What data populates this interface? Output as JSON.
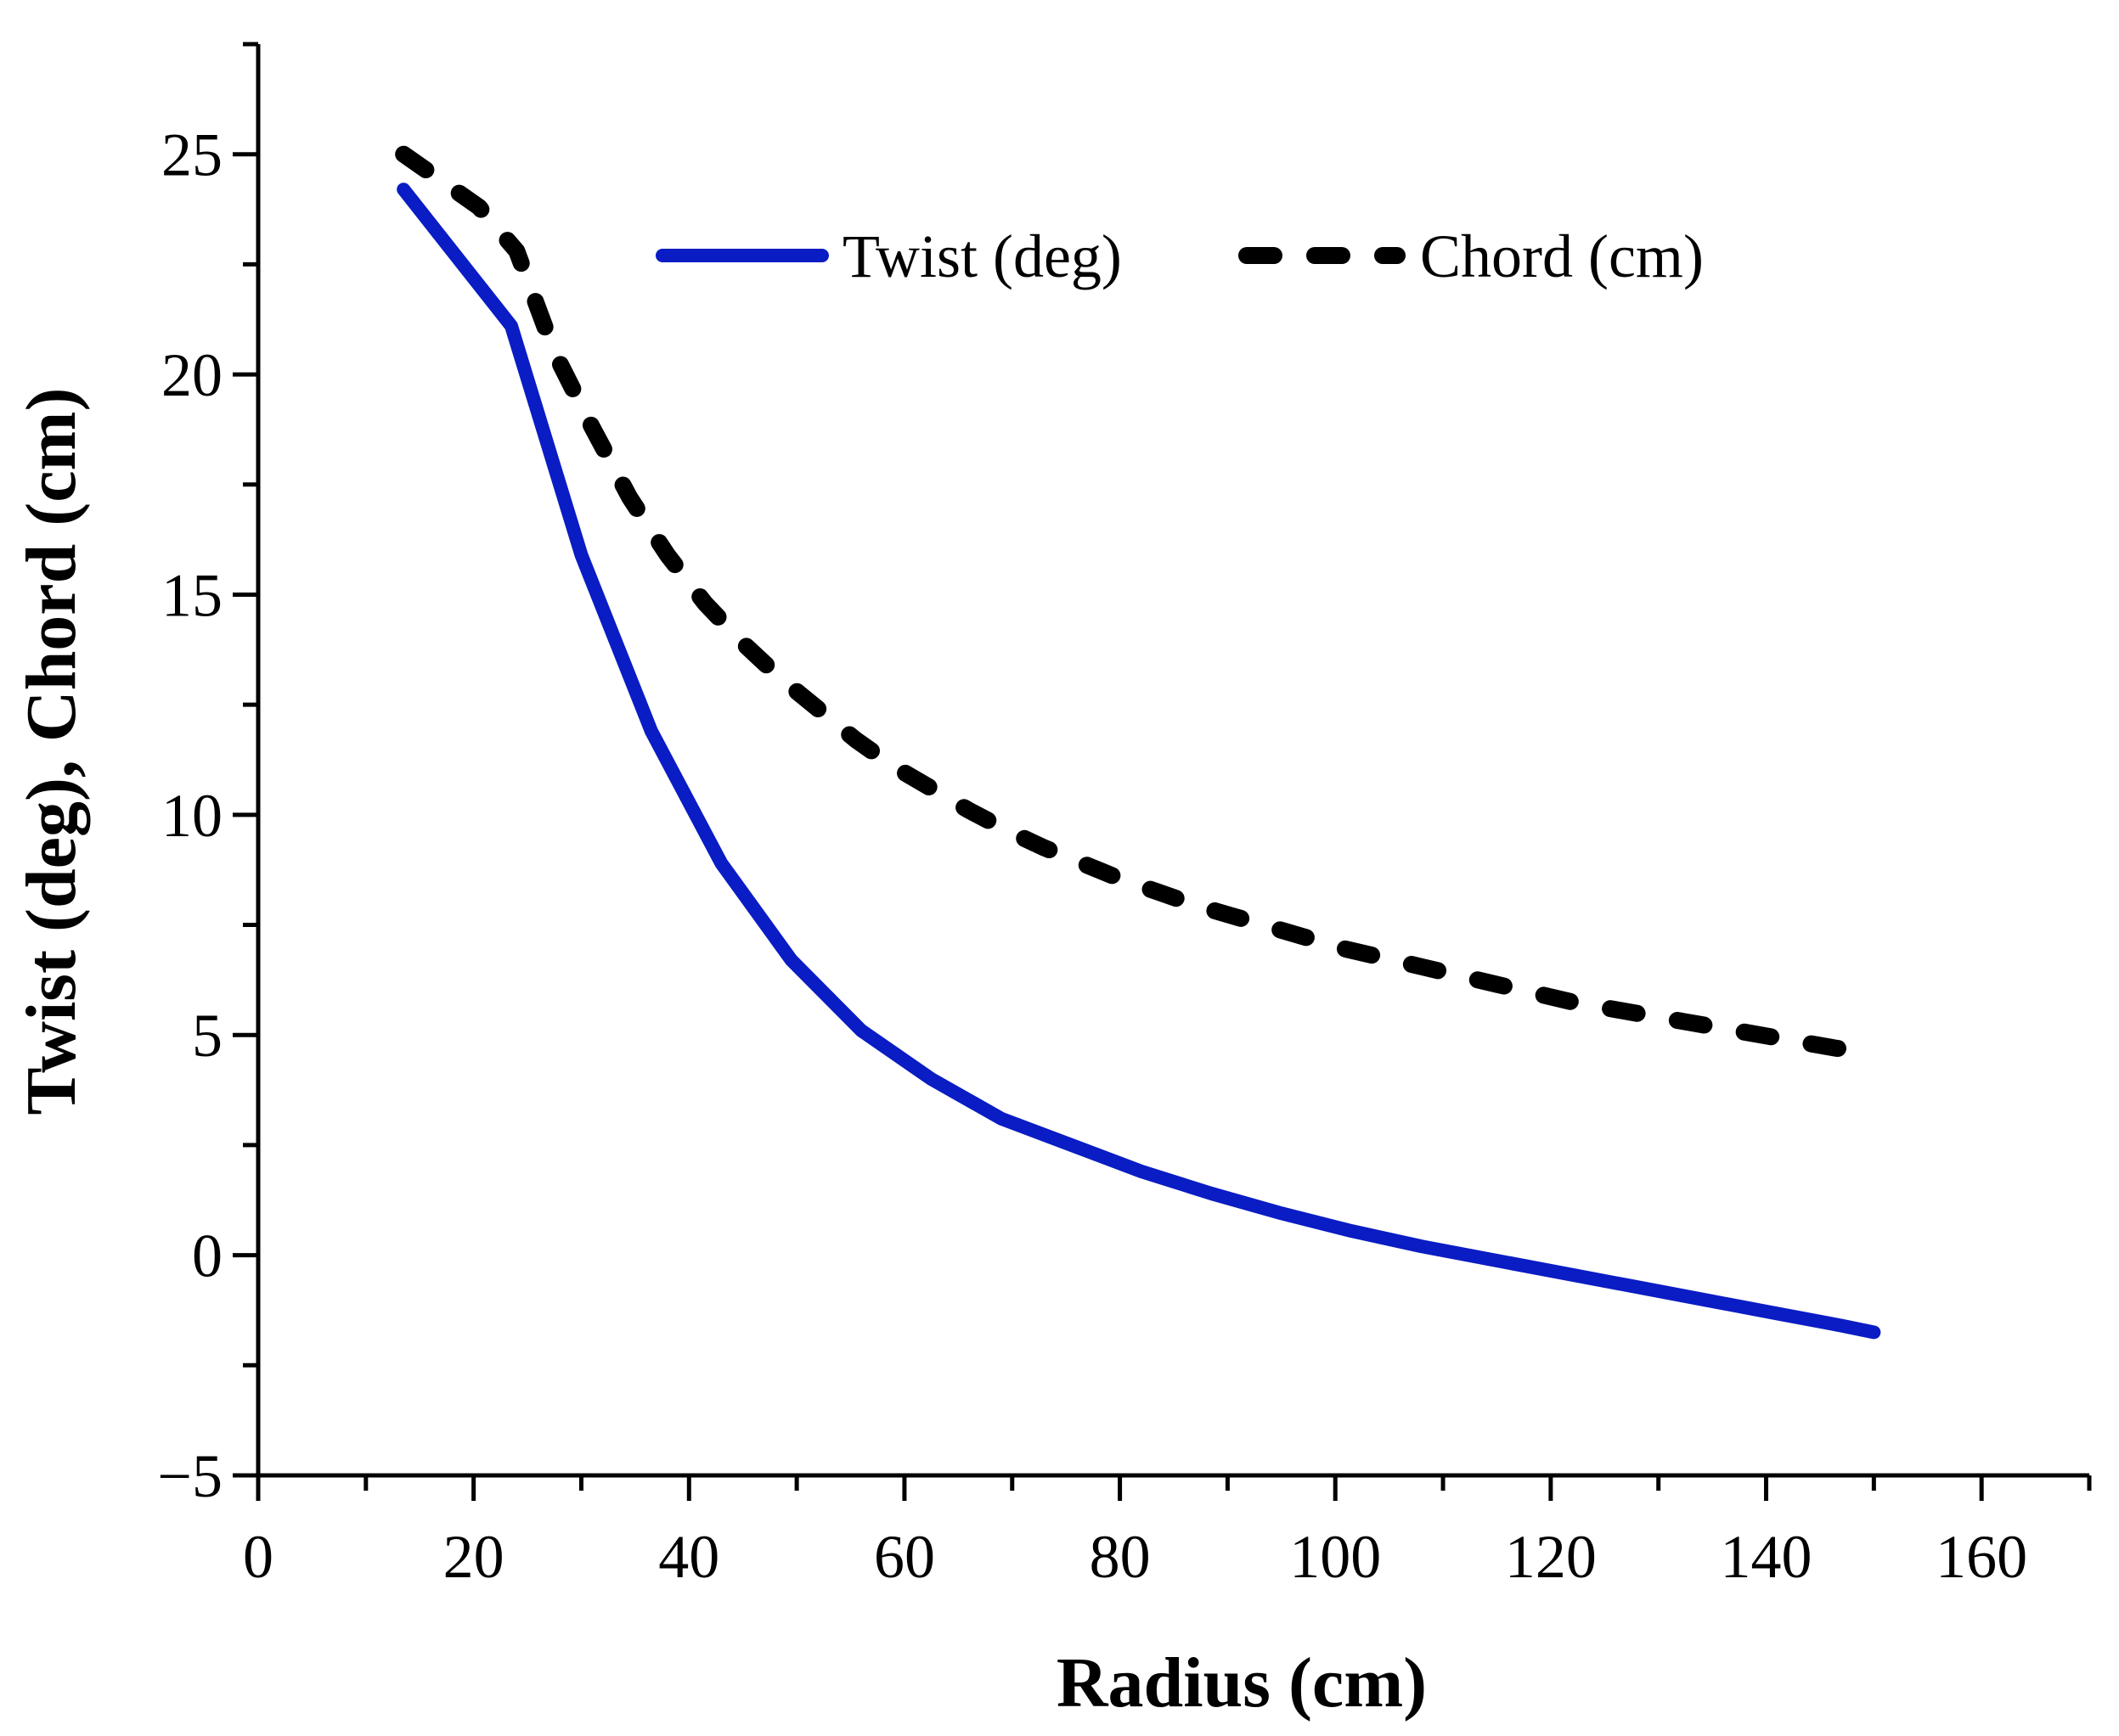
{
  "chart_data": {
    "type": "line",
    "title": "",
    "xlabel": "Radius (cm)",
    "ylabel": "Twist (deg), Chord (cm)",
    "xlim": [
      0,
      170
    ],
    "ylim": [
      -5,
      27.5
    ],
    "xticks": [
      0,
      20,
      40,
      60,
      80,
      100,
      120,
      140,
      160
    ],
    "xtick_labels": [
      "0",
      "20",
      "40",
      "60",
      "80",
      "100",
      "120",
      "140",
      "160"
    ],
    "yticks": [
      -5,
      0,
      5,
      10,
      15,
      20,
      25
    ],
    "ytick_labels": [
      "−5",
      "0",
      "5",
      "10",
      "15",
      "20",
      "25"
    ],
    "grid": false,
    "legend": "top-center",
    "series": [
      {
        "name": "Twist (deg)",
        "color": "#0a1cc4",
        "style": "solid",
        "x": [
          13.5,
          23.5,
          30,
          36.5,
          43,
          49.5,
          56,
          62.5,
          69,
          75.5,
          82,
          88.5,
          95,
          101.5,
          108,
          114.5,
          121,
          127.5,
          134,
          140.5,
          147,
          150
        ],
        "y": [
          24.2,
          21.1,
          15.9,
          11.9,
          8.9,
          6.7,
          5.1,
          4.0,
          3.1,
          2.5,
          1.9,
          1.4,
          0.95,
          0.55,
          0.2,
          -0.1,
          -0.4,
          -0.7,
          -1.0,
          -1.3,
          -1.6,
          -1.75
        ]
      },
      {
        "name": "Chord (cm)",
        "color": "#000000",
        "style": "dashed",
        "x": [
          13.5,
          17,
          20.5,
          24,
          27.5,
          31,
          34.5,
          38,
          41.5,
          45,
          48.5,
          52,
          55.5,
          59,
          62.5,
          66,
          69.5,
          73,
          76.5,
          80,
          83.5,
          87,
          90.5,
          94,
          97.5,
          101,
          104.5,
          108,
          111.5,
          115,
          118.5,
          122,
          125.5,
          129,
          132.5,
          136,
          139.5,
          143,
          146.5,
          150
        ],
        "y": [
          25.0,
          24.4,
          23.8,
          22.8,
          20.5,
          18.8,
          17.2,
          15.9,
          14.8,
          13.9,
          13.1,
          12.4,
          11.7,
          11.1,
          10.6,
          10.1,
          9.65,
          9.25,
          8.9,
          8.55,
          8.25,
          7.95,
          7.7,
          7.45,
          7.2,
          6.95,
          6.75,
          6.55,
          6.35,
          6.15,
          5.95,
          5.75,
          5.6,
          5.45,
          5.3,
          5.15,
          5.0,
          4.85,
          4.7,
          4.6
        ]
      }
    ]
  }
}
